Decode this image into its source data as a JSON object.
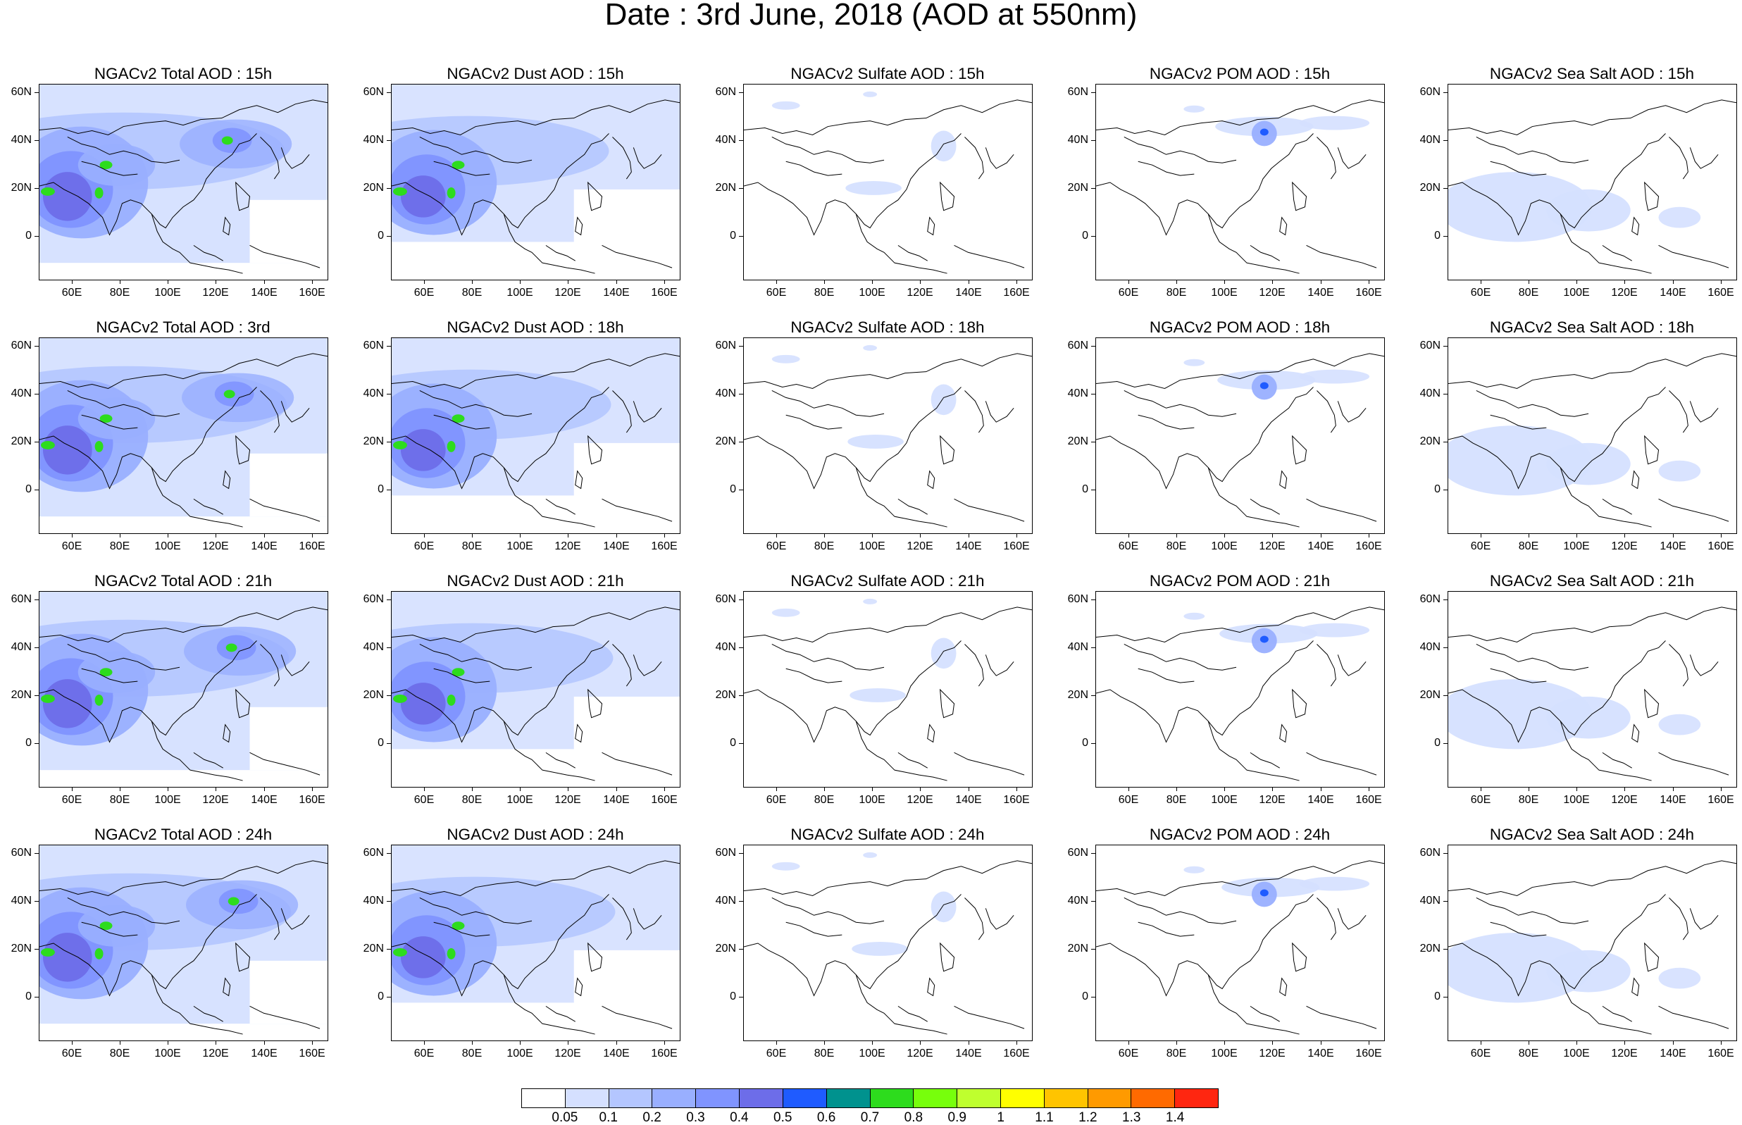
{
  "figure": {
    "title": "Date : 3rd June, 2018 (AOD at 550nm)"
  },
  "axes": {
    "lat_labels": [
      "60N",
      "40N",
      "20N",
      "0"
    ],
    "lon_labels": [
      "60E",
      "80E",
      "100E",
      "120E",
      "140E",
      "160E"
    ]
  },
  "panels": [
    {
      "title": "NGACv2 Total AOD : 15h",
      "species": "total"
    },
    {
      "title": "NGACv2 Dust AOD : 15h",
      "species": "dust"
    },
    {
      "title": "NGACv2 Sulfate AOD : 15h",
      "species": "sulfate"
    },
    {
      "title": "NGACv2 POM AOD : 15h",
      "species": "pom"
    },
    {
      "title": "NGACv2 Sea Salt AOD : 15h",
      "species": "seasalt"
    },
    {
      "title": "NGACv2 Total AOD : 3rd",
      "species": "total"
    },
    {
      "title": "NGACv2 Dust AOD : 18h",
      "species": "dust"
    },
    {
      "title": "NGACv2 Sulfate AOD : 18h",
      "species": "sulfate"
    },
    {
      "title": "NGACv2 POM AOD : 18h",
      "species": "pom"
    },
    {
      "title": "NGACv2 Sea Salt AOD : 18h",
      "species": "seasalt"
    },
    {
      "title": "NGACv2 Total AOD : 21h",
      "species": "total"
    },
    {
      "title": "NGACv2 Dust AOD : 21h",
      "species": "dust"
    },
    {
      "title": "NGACv2 Sulfate AOD : 21h",
      "species": "sulfate"
    },
    {
      "title": "NGACv2 POM AOD : 21h",
      "species": "pom"
    },
    {
      "title": "NGACv2 Sea Salt AOD : 21h",
      "species": "seasalt"
    },
    {
      "title": "NGACv2 Total AOD : 24h",
      "species": "total"
    },
    {
      "title": "NGACv2 Dust AOD : 24h",
      "species": "dust"
    },
    {
      "title": "NGACv2 Sulfate AOD : 24h",
      "species": "sulfate"
    },
    {
      "title": "NGACv2 POM AOD : 24h",
      "species": "pom"
    },
    {
      "title": "NGACv2 Sea Salt  AOD : 24h",
      "species": "seasalt"
    }
  ],
  "colorbar": {
    "colors": [
      "#ffffff",
      "#d5e0ff",
      "#b4c6ff",
      "#99afff",
      "#8094ff",
      "#6d6de9",
      "#1f5bff",
      "#00928e",
      "#2ddc1d",
      "#77ff0c",
      "#bfff2e",
      "#ffff00",
      "#ffc400",
      "#ff9a00",
      "#ff6a00",
      "#ff2610"
    ],
    "labels": [
      "0.05",
      "0.1",
      "0.2",
      "0.3",
      "0.4",
      "0.5",
      "0.6",
      "0.7",
      "0.8",
      "0.9",
      "1",
      "1.1",
      "1.2",
      "1.3",
      "1.4"
    ]
  }
}
